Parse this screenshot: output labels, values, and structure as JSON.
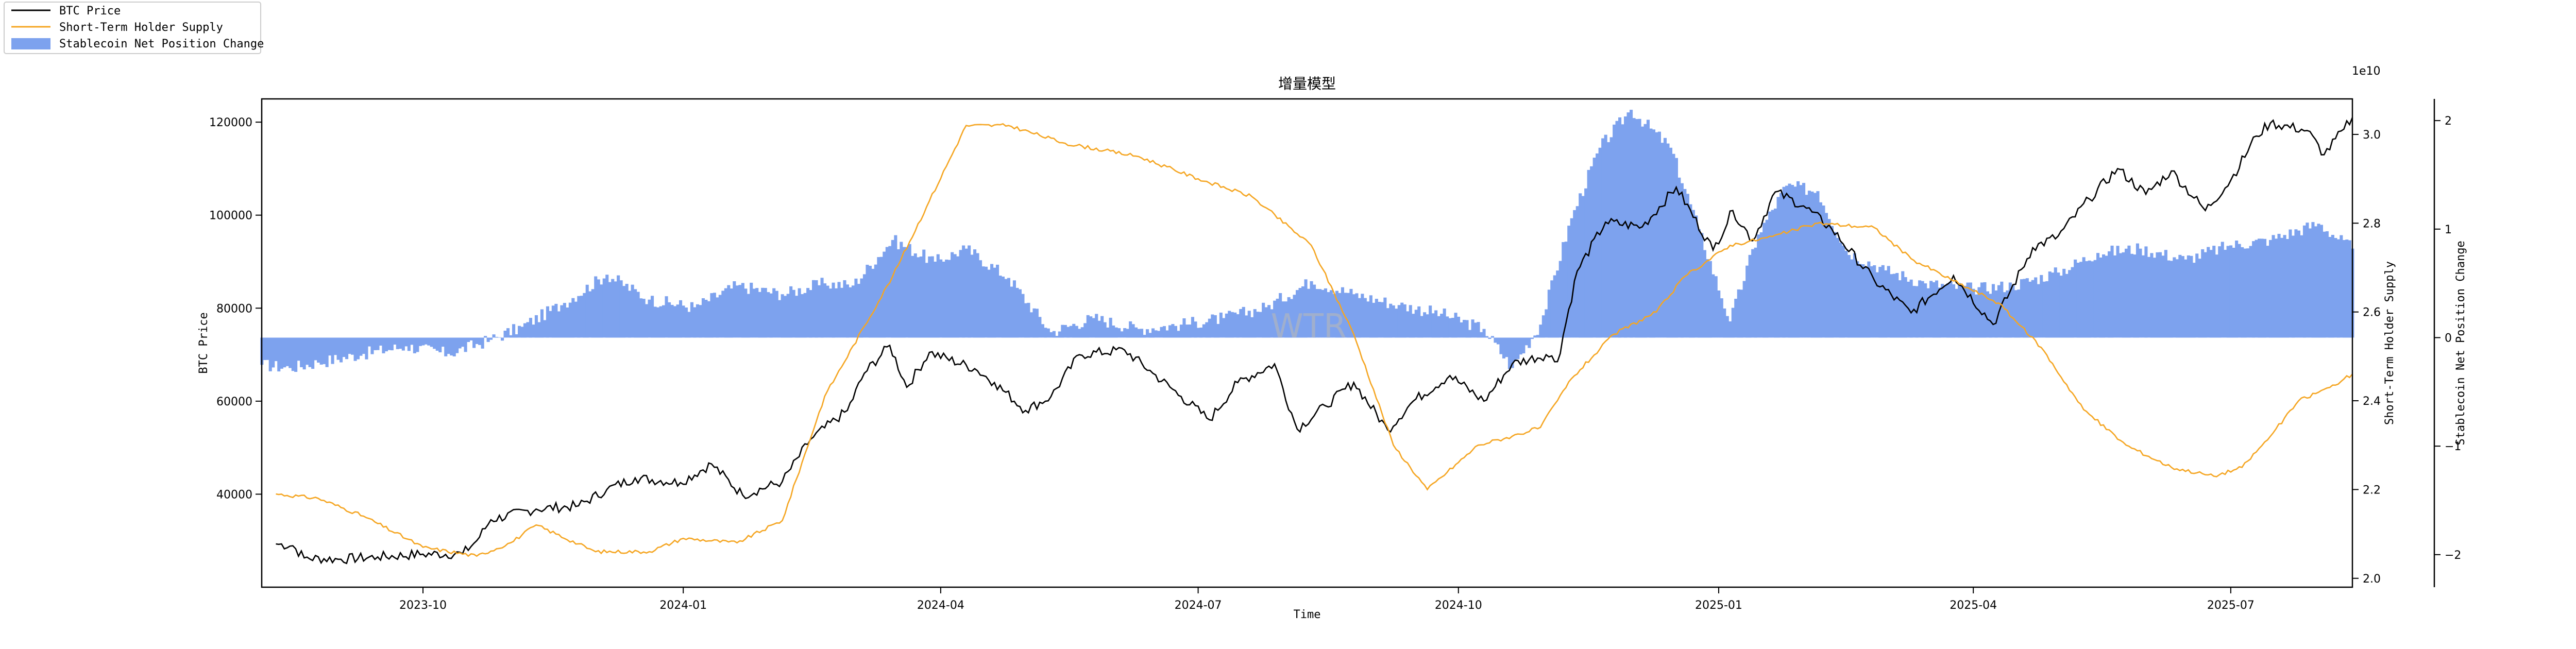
{
  "chart_data": {
    "type": "line",
    "title": "增量模型",
    "xlabel": "Time",
    "y_left_label": "BTC Price",
    "y_right_label": "Short-Term Holder Supply",
    "y_right2_label": "Stablecoin Net Position Change",
    "offset_text": "1e10",
    "watermark": "WTR",
    "x_range": [
      "2023-08-05",
      "2025-08-13"
    ],
    "x_ticks": [
      {
        "date": "2023-10-01",
        "label": "2023-10"
      },
      {
        "date": "2024-01-01",
        "label": "2024-01"
      },
      {
        "date": "2024-04-01",
        "label": "2024-04"
      },
      {
        "date": "2024-07-01",
        "label": "2024-07"
      },
      {
        "date": "2024-10-01",
        "label": "2024-10"
      },
      {
        "date": "2025-01-01",
        "label": "2025-01"
      },
      {
        "date": "2025-04-01",
        "label": "2025-04"
      },
      {
        "date": "2025-07-01",
        "label": "2025-07"
      }
    ],
    "y_left": {
      "range": [
        20000,
        125000
      ],
      "ticks": [
        40000,
        60000,
        80000,
        100000,
        120000
      ],
      "tick_labels": [
        "40000",
        "60000",
        "80000",
        "100000",
        "120000"
      ]
    },
    "y_right": {
      "range": [
        1.98,
        3.08
      ],
      "ticks": [
        2.0,
        2.2,
        2.4,
        2.6,
        2.8,
        3.0
      ],
      "tick_labels": [
        "2.0",
        "2.2",
        "2.4",
        "2.6",
        "2.8",
        "3.0"
      ]
    },
    "y_right2": {
      "range": [
        -2.3,
        2.2
      ],
      "ticks": [
        -2,
        -1,
        0,
        1,
        2
      ],
      "tick_labels": [
        "−2",
        "−1",
        "0",
        "1",
        "2"
      ]
    },
    "legend": {
      "placement": "upper-left, outside plot",
      "entries": [
        {
          "label": "BTC Price",
          "kind": "line",
          "color": "#000000"
        },
        {
          "label": "Short-Term Holder Supply",
          "kind": "line",
          "color": "#f5a623"
        },
        {
          "label": "Stablecoin Net Position Change",
          "kind": "patch",
          "color": "#7da2ee"
        }
      ]
    },
    "series": [
      {
        "name": "BTC Price",
        "axis": "left",
        "color": "#000000",
        "points": [
          [
            "2023-08-10",
            29300
          ],
          [
            "2023-08-16",
            28900
          ],
          [
            "2023-08-20",
            26300
          ],
          [
            "2023-09-01",
            26000
          ],
          [
            "2023-09-15",
            26500
          ],
          [
            "2023-10-01",
            27100
          ],
          [
            "2023-10-15",
            27200
          ],
          [
            "2023-10-20",
            30000
          ],
          [
            "2023-10-25",
            34500
          ],
          [
            "2023-11-10",
            36800
          ],
          [
            "2023-11-25",
            37500
          ],
          [
            "2023-12-05",
            41000
          ],
          [
            "2023-12-15",
            43500
          ],
          [
            "2023-12-31",
            42500
          ],
          [
            "2024-01-11",
            46500
          ],
          [
            "2024-01-22",
            39800
          ],
          [
            "2024-02-05",
            42700
          ],
          [
            "2024-02-15",
            51800
          ],
          [
            "2024-02-28",
            58000
          ],
          [
            "2024-03-05",
            66000
          ],
          [
            "2024-03-14",
            72000
          ],
          [
            "2024-03-20",
            63000
          ],
          [
            "2024-03-28",
            70500
          ],
          [
            "2024-04-13",
            67000
          ],
          [
            "2024-04-20",
            64000
          ],
          [
            "2024-05-01",
            58000
          ],
          [
            "2024-05-10",
            61000
          ],
          [
            "2024-05-20",
            70000
          ],
          [
            "2024-06-05",
            71000
          ],
          [
            "2024-06-15",
            66000
          ],
          [
            "2024-06-25",
            61000
          ],
          [
            "2024-07-05",
            56000
          ],
          [
            "2024-07-15",
            64000
          ],
          [
            "2024-07-28",
            68000
          ],
          [
            "2024-08-05",
            54000
          ],
          [
            "2024-08-15",
            59000
          ],
          [
            "2024-08-25",
            64000
          ],
          [
            "2024-09-06",
            53800
          ],
          [
            "2024-09-15",
            60000
          ],
          [
            "2024-09-28",
            65500
          ],
          [
            "2024-10-10",
            60000
          ],
          [
            "2024-10-20",
            68000
          ],
          [
            "2024-11-01",
            70000
          ],
          [
            "2024-11-05",
            68500
          ],
          [
            "2024-11-12",
            88000
          ],
          [
            "2024-11-22",
            98500
          ],
          [
            "2024-12-05",
            97500
          ],
          [
            "2024-12-17",
            106000
          ],
          [
            "2024-12-30",
            92500
          ],
          [
            "2025-01-06",
            101000
          ],
          [
            "2025-01-13",
            94500
          ],
          [
            "2025-01-21",
            105000
          ],
          [
            "2025-01-31",
            102000
          ],
          [
            "2025-02-10",
            97000
          ],
          [
            "2025-02-25",
            86000
          ],
          [
            "2025-03-10",
            79000
          ],
          [
            "2025-03-25",
            87000
          ],
          [
            "2025-04-08",
            76500
          ],
          [
            "2025-04-22",
            93000
          ],
          [
            "2025-05-01",
            95500
          ],
          [
            "2025-05-12",
            103500
          ],
          [
            "2025-05-22",
            110000
          ],
          [
            "2025-06-01",
            104500
          ],
          [
            "2025-06-10",
            109500
          ],
          [
            "2025-06-22",
            101000
          ],
          [
            "2025-07-01",
            107500
          ],
          [
            "2025-07-10",
            117000
          ],
          [
            "2025-07-15",
            119800
          ],
          [
            "2025-07-28",
            118200
          ],
          [
            "2025-08-03",
            113000
          ],
          [
            "2025-08-10",
            118500
          ],
          [
            "2025-08-13",
            121000
          ]
        ]
      },
      {
        "name": "Short-Term Holder Supply",
        "axis": "right",
        "color": "#f5a623",
        "points": [
          [
            "2023-08-10",
            2.19
          ],
          [
            "2023-08-25",
            2.18
          ],
          [
            "2023-09-10",
            2.14
          ],
          [
            "2023-10-01",
            2.07
          ],
          [
            "2023-10-20",
            2.05
          ],
          [
            "2023-11-01",
            2.08
          ],
          [
            "2023-11-10",
            2.12
          ],
          [
            "2023-12-01",
            2.06
          ],
          [
            "2023-12-20",
            2.06
          ],
          [
            "2024-01-01",
            2.09
          ],
          [
            "2024-01-20",
            2.08
          ],
          [
            "2024-02-05",
            2.13
          ],
          [
            "2024-02-20",
            2.41
          ],
          [
            "2024-03-15",
            2.68
          ],
          [
            "2024-03-28",
            2.85
          ],
          [
            "2024-04-10",
            3.02
          ],
          [
            "2024-04-25",
            3.02
          ],
          [
            "2024-05-15",
            2.98
          ],
          [
            "2024-06-10",
            2.95
          ],
          [
            "2024-07-01",
            2.9
          ],
          [
            "2024-07-20",
            2.86
          ],
          [
            "2024-08-10",
            2.75
          ],
          [
            "2024-08-25",
            2.55
          ],
          [
            "2024-09-08",
            2.3
          ],
          [
            "2024-09-20",
            2.2
          ],
          [
            "2024-10-08",
            2.3
          ],
          [
            "2024-10-20",
            2.32
          ],
          [
            "2024-10-30",
            2.34
          ],
          [
            "2024-11-10",
            2.45
          ],
          [
            "2024-11-25",
            2.55
          ],
          [
            "2024-12-10",
            2.6
          ],
          [
            "2024-12-20",
            2.68
          ],
          [
            "2025-01-05",
            2.75
          ],
          [
            "2025-01-20",
            2.77
          ],
          [
            "2025-02-05",
            2.8
          ],
          [
            "2025-02-25",
            2.79
          ],
          [
            "2025-03-10",
            2.72
          ],
          [
            "2025-03-25",
            2.67
          ],
          [
            "2025-04-10",
            2.62
          ],
          [
            "2025-04-25",
            2.52
          ],
          [
            "2025-05-10",
            2.38
          ],
          [
            "2025-05-25",
            2.3
          ],
          [
            "2025-06-10",
            2.25
          ],
          [
            "2025-06-25",
            2.23
          ],
          [
            "2025-07-05",
            2.25
          ],
          [
            "2025-07-15",
            2.32
          ],
          [
            "2025-07-25",
            2.4
          ],
          [
            "2025-08-05",
            2.43
          ],
          [
            "2025-08-13",
            2.46
          ]
        ]
      },
      {
        "name": "Stablecoin Net Position Change",
        "axis": "right2",
        "color": "#7da2ee",
        "kind": "bar",
        "points": [
          [
            "2023-08-05",
            -0.25
          ],
          [
            "2023-08-15",
            -0.28
          ],
          [
            "2023-08-25",
            -0.23
          ],
          [
            "2023-09-10",
            -0.15
          ],
          [
            "2023-09-25",
            -0.08
          ],
          [
            "2023-10-10",
            -0.15
          ],
          [
            "2023-10-25",
            -0.02
          ],
          [
            "2023-11-05",
            0.1
          ],
          [
            "2023-11-20",
            0.32
          ],
          [
            "2023-12-05",
            0.58
          ],
          [
            "2023-12-20",
            0.35
          ],
          [
            "2024-01-05",
            0.28
          ],
          [
            "2024-01-20",
            0.48
          ],
          [
            "2024-02-05",
            0.4
          ],
          [
            "2024-02-20",
            0.5
          ],
          [
            "2024-03-01",
            0.48
          ],
          [
            "2024-03-15",
            0.9
          ],
          [
            "2024-03-30",
            0.7
          ],
          [
            "2024-04-10",
            0.82
          ],
          [
            "2024-04-25",
            0.55
          ],
          [
            "2024-05-10",
            0.05
          ],
          [
            "2024-05-25",
            0.18
          ],
          [
            "2024-06-10",
            0.08
          ],
          [
            "2024-06-25",
            0.12
          ],
          [
            "2024-07-10",
            0.18
          ],
          [
            "2024-07-25",
            0.28
          ],
          [
            "2024-08-10",
            0.52
          ],
          [
            "2024-08-25",
            0.4
          ],
          [
            "2024-09-10",
            0.3
          ],
          [
            "2024-09-25",
            0.22
          ],
          [
            "2024-10-10",
            0.08
          ],
          [
            "2024-10-20",
            -0.28
          ],
          [
            "2024-10-30",
            0.12
          ],
          [
            "2024-11-10",
            1.1
          ],
          [
            "2024-11-20",
            1.75
          ],
          [
            "2024-12-01",
            2.1
          ],
          [
            "2024-12-15",
            1.75
          ],
          [
            "2024-12-25",
            1.0
          ],
          [
            "2025-01-05",
            0.15
          ],
          [
            "2025-01-15",
            0.95
          ],
          [
            "2025-01-25",
            1.4
          ],
          [
            "2025-02-05",
            1.35
          ],
          [
            "2025-02-15",
            0.8
          ],
          [
            "2025-03-01",
            0.62
          ],
          [
            "2025-03-15",
            0.5
          ],
          [
            "2025-04-01",
            0.45
          ],
          [
            "2025-04-15",
            0.48
          ],
          [
            "2025-05-01",
            0.6
          ],
          [
            "2025-05-15",
            0.78
          ],
          [
            "2025-05-30",
            0.82
          ],
          [
            "2025-06-15",
            0.72
          ],
          [
            "2025-07-01",
            0.85
          ],
          [
            "2025-07-15",
            0.9
          ],
          [
            "2025-08-01",
            1.05
          ],
          [
            "2025-08-13",
            0.82
          ]
        ]
      }
    ]
  }
}
